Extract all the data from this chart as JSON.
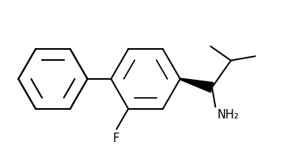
{
  "background_color": "#ffffff",
  "line_color": "#000000",
  "line_width": 1.4,
  "figsize": [
    3.78,
    1.9
  ],
  "dpi": 100,
  "F_label": "F",
  "NH2_label": "NH₂",
  "font_size_labels": 10.5
}
